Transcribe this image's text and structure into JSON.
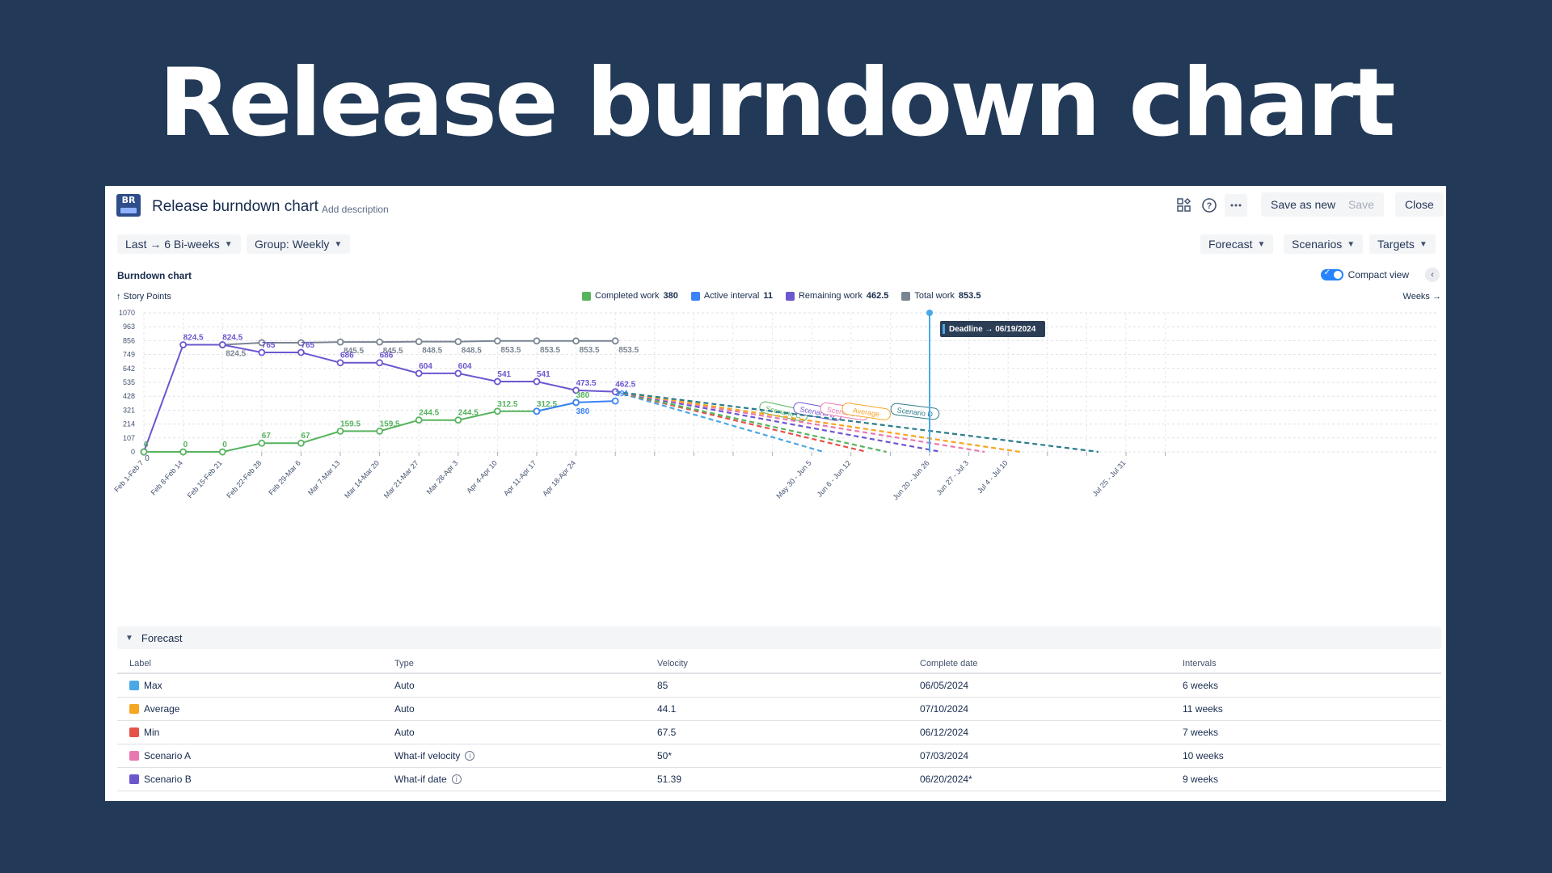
{
  "hero": {
    "title": "Release burndown chart"
  },
  "header": {
    "logo_text": "BR",
    "title": "Release burndown chart",
    "add_description": "Add description",
    "save_as_new_label": "Save as new",
    "save_label": "Save",
    "close_label": "Close"
  },
  "filters": {
    "range_label": "Last → 6 Bi-weeks",
    "group_label": "Group: Weekly",
    "forecast_label": "Forecast",
    "scenarios_label": "Scenarios",
    "targets_label": "Targets"
  },
  "chart_header": {
    "section_label": "Burndown chart",
    "compact_view_label": "Compact view",
    "y_axis_title": "↑ Story Points",
    "x_axis_title": "Weeks →"
  },
  "legend": [
    {
      "label": "Completed work",
      "value": "380",
      "color": "#57b35f"
    },
    {
      "label": "Active interval",
      "value": "11",
      "color": "#3b82f6"
    },
    {
      "label": "Remaining work",
      "value": "462.5",
      "color": "#6e56cf"
    },
    {
      "label": "Total work",
      "value": "853.5",
      "color": "#7a8592"
    }
  ],
  "chart_data": {
    "type": "line",
    "y_ticks": [
      "1070",
      "963",
      "856",
      "749",
      "642",
      "535",
      "428",
      "321",
      "214",
      "107",
      "0"
    ],
    "ylim": [
      0,
      1070
    ],
    "x_tick_labels": [
      "Feb 1-Feb 7",
      "Feb 8-Feb 14",
      "Feb 15-Feb 21",
      "Feb 22-Feb 28",
      "Feb 29-Mar 6",
      "Mar 7-Mar 13",
      "Mar 14-Mar 20",
      "Mar 21-Mar 27",
      "Mar 28-Apr 3",
      "Apr 4-Apr 10",
      "Apr 11-Apr 17",
      "Apr 18-Apr 24",
      "",
      "",
      "",
      "",
      "",
      "May 30 - Jun 5",
      "Jun 6 - Jun 12",
      "",
      "Jun 20 - Jun 26",
      "Jun 27 - Jul 3",
      "Jul 4 - Jul 10",
      "",
      "",
      "Jul 25 - Jul 31",
      ""
    ],
    "x_points": 27,
    "series": [
      {
        "name": "Total work",
        "color": "#7a8592",
        "start_index": 2,
        "values": [
          824.5,
          840,
          840,
          845.5,
          845.5,
          848.5,
          848.5,
          853.5,
          853.5,
          853.5,
          853.5
        ],
        "labels": [
          "824.5",
          "",
          "",
          "845.5",
          "845.5",
          "848.5",
          "848.5",
          "853.5",
          "853.5",
          "853.5",
          "853.5"
        ]
      },
      {
        "name": "Remaining work",
        "color": "#6e56cf",
        "start_index": 0,
        "values": [
          0,
          824.5,
          824.5,
          765,
          765,
          686,
          686,
          604,
          604,
          541,
          541,
          473.5,
          462.5
        ],
        "labels": [
          "0",
          "824.5",
          "824.5",
          "765",
          "765",
          "686",
          "686",
          "604",
          "604",
          "541",
          "541",
          "473.5",
          "462.5"
        ]
      },
      {
        "name": "Completed work",
        "color": "#57b35f",
        "start_index": 0,
        "values": [
          0,
          0,
          0,
          67,
          67,
          159.5,
          159.5,
          244.5,
          244.5,
          312.5,
          312.5,
          380
        ],
        "labels": [
          "0",
          "0",
          "0",
          "67",
          "67",
          "159.5",
          "159.5",
          "244.5",
          "244.5",
          "312.5",
          "312.5",
          "380"
        ]
      },
      {
        "name": "Active interval",
        "color": "#3b82f6",
        "start_index": 10,
        "values": [
          312.5,
          380,
          391
        ],
        "labels": [
          "",
          "380",
          "391"
        ]
      }
    ],
    "forecasts": [
      {
        "name": "Max",
        "color": "#4aa8e6",
        "end_index": 17.3
      },
      {
        "name": "Min",
        "color": "#e5534b",
        "end_index": 18.4
      },
      {
        "name": "Scenario C",
        "color": "#57b35f",
        "end_index": 18.9,
        "label": "Scenario C"
      },
      {
        "name": "Scenario B",
        "color": "#6e56cf",
        "end_index": 20.3,
        "label": "Scenario B"
      },
      {
        "name": "Scenario A",
        "color": "#e879b0",
        "end_index": 21.4,
        "label": "Scenario A"
      },
      {
        "name": "Average",
        "color": "#f5a623",
        "end_index": 22.3,
        "label": "Average"
      },
      {
        "name": "Scenario D",
        "color": "#2b7d8a",
        "end_index": 24.3,
        "label": "Scenario D"
      }
    ],
    "deadline": {
      "label": "Deadline → 06/19/2024",
      "index": 20
    },
    "x_axis_zero_label": "0"
  },
  "forecast_section": {
    "title": "Forecast",
    "columns": [
      "Label",
      "Type",
      "Velocity",
      "Complete date",
      "Intervals"
    ],
    "rows": [
      {
        "label": "Max",
        "color": "#4aa8e6",
        "type": "Auto",
        "velocity": "85",
        "date": "06/05/2024",
        "intervals": "6 weeks",
        "info": false
      },
      {
        "label": "Average",
        "color": "#f5a623",
        "type": "Auto",
        "velocity": "44.1",
        "date": "07/10/2024",
        "intervals": "11 weeks",
        "info": false
      },
      {
        "label": "Min",
        "color": "#e5534b",
        "type": "Auto",
        "velocity": "67.5",
        "date": "06/12/2024",
        "intervals": "7 weeks",
        "info": false
      },
      {
        "label": "Scenario A",
        "color": "#e879b0",
        "type": "What-if velocity",
        "velocity": "50*",
        "date": "07/03/2024",
        "intervals": "10 weeks",
        "info": true
      },
      {
        "label": "Scenario B",
        "color": "#6e56cf",
        "type": "What-if date",
        "velocity": "51.39",
        "date": "06/20/2024*",
        "intervals": "9 weeks",
        "info": true
      }
    ]
  }
}
